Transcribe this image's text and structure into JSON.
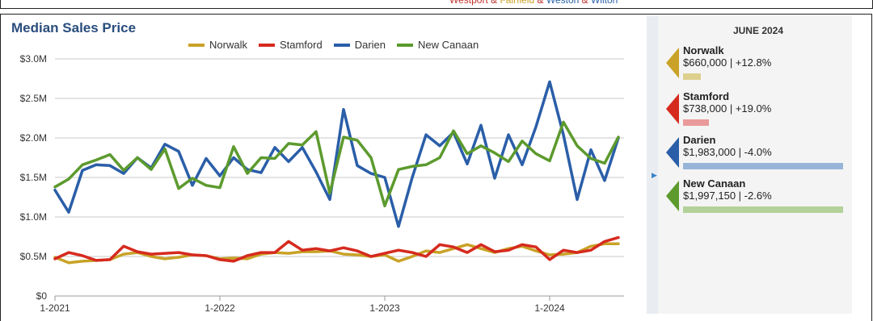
{
  "header": {
    "subtitle_parts": [
      {
        "text": "Westport",
        "color": "#c2302b"
      },
      {
        "text": " & ",
        "color": "#c2302b"
      },
      {
        "text": "Fairfield",
        "color": "#c9a227"
      },
      {
        "text": " & ",
        "color": "#c2302b"
      },
      {
        "text": "Weston",
        "color": "#2a62a8"
      },
      {
        "text": " & ",
        "color": "#c2302b"
      },
      {
        "text": "Wilton",
        "color": "#2a62a8"
      }
    ]
  },
  "chart_data": {
    "type": "line",
    "title": "Median Sales Price",
    "x_tick_labels": [
      "1-2021",
      "1-2022",
      "1-2023",
      "1-2024"
    ],
    "y_tick_labels": [
      "$0",
      "$0.5M",
      "$1.0M",
      "$1.5M",
      "$2.0M",
      "$2.5M",
      "$3.0M"
    ],
    "ylim": [
      0,
      3.0
    ],
    "y_unit": "$M",
    "grid": true,
    "legend_position": "top-center",
    "x": [
      "2021-01",
      "2021-02",
      "2021-03",
      "2021-04",
      "2021-05",
      "2021-06",
      "2021-07",
      "2021-08",
      "2021-09",
      "2021-10",
      "2021-11",
      "2021-12",
      "2022-01",
      "2022-02",
      "2022-03",
      "2022-04",
      "2022-05",
      "2022-06",
      "2022-07",
      "2022-08",
      "2022-09",
      "2022-10",
      "2022-11",
      "2022-12",
      "2023-01",
      "2023-02",
      "2023-03",
      "2023-04",
      "2023-05",
      "2023-06",
      "2023-07",
      "2023-08",
      "2023-09",
      "2023-10",
      "2023-11",
      "2023-12",
      "2024-01",
      "2024-02",
      "2024-03",
      "2024-04",
      "2024-05",
      "2024-06"
    ],
    "series": [
      {
        "name": "Norwalk",
        "color": "#c9a227",
        "values": [
          0.49,
          0.42,
          0.44,
          0.45,
          0.46,
          0.53,
          0.55,
          0.5,
          0.47,
          0.49,
          0.52,
          0.51,
          0.47,
          0.48,
          0.47,
          0.53,
          0.55,
          0.54,
          0.56,
          0.56,
          0.57,
          0.53,
          0.52,
          0.5,
          0.52,
          0.44,
          0.5,
          0.57,
          0.55,
          0.6,
          0.65,
          0.6,
          0.55,
          0.6,
          0.63,
          0.57,
          0.52,
          0.53,
          0.55,
          0.63,
          0.66,
          0.66
        ]
      },
      {
        "name": "Stamford",
        "color": "#d62a1e",
        "values": [
          0.47,
          0.55,
          0.51,
          0.45,
          0.46,
          0.63,
          0.56,
          0.53,
          0.54,
          0.55,
          0.52,
          0.51,
          0.46,
          0.44,
          0.51,
          0.55,
          0.55,
          0.69,
          0.58,
          0.6,
          0.57,
          0.61,
          0.57,
          0.5,
          0.54,
          0.58,
          0.55,
          0.5,
          0.65,
          0.62,
          0.55,
          0.65,
          0.56,
          0.58,
          0.65,
          0.62,
          0.46,
          0.58,
          0.55,
          0.58,
          0.69,
          0.74
        ]
      },
      {
        "name": "Darien",
        "color": "#2a5ea8",
        "values": [
          1.34,
          1.06,
          1.59,
          1.66,
          1.65,
          1.55,
          1.75,
          1.62,
          1.92,
          1.83,
          1.4,
          1.74,
          1.52,
          1.75,
          1.6,
          1.56,
          1.88,
          1.7,
          1.88,
          1.57,
          1.22,
          2.36,
          1.65,
          1.55,
          1.5,
          0.88,
          1.5,
          2.04,
          1.9,
          2.07,
          1.67,
          2.16,
          1.49,
          2.04,
          1.66,
          2.14,
          2.71,
          2.04,
          1.22,
          1.85,
          1.46,
          2.0
        ]
      },
      {
        "name": "New Canaan",
        "color": "#5c9a2e",
        "values": [
          1.38,
          1.48,
          1.66,
          1.72,
          1.79,
          1.59,
          1.75,
          1.6,
          1.86,
          1.36,
          1.49,
          1.4,
          1.37,
          1.89,
          1.55,
          1.75,
          1.74,
          1.93,
          1.91,
          2.08,
          1.3,
          2.01,
          1.97,
          1.75,
          1.14,
          1.6,
          1.64,
          1.66,
          1.75,
          2.09,
          1.8,
          1.9,
          1.81,
          1.7,
          1.96,
          1.8,
          1.71,
          2.2,
          1.9,
          1.74,
          1.68,
          2.01
        ]
      }
    ]
  },
  "panel": {
    "date_label": "JUNE 2024",
    "cards": [
      {
        "name": "Norwalk",
        "value": "$660,000 | +12.8%",
        "color": "#c9a227",
        "bar_color": "#ddd08e",
        "bar_fraction": 0.11
      },
      {
        "name": "Stamford",
        "value": "$738,000 | +19.0%",
        "color": "#d62a1e",
        "bar_color": "#ea9a9a",
        "bar_fraction": 0.16
      },
      {
        "name": "Darien",
        "value": "$1,983,000 | -4.0%",
        "color": "#2a5ea8",
        "bar_color": "#97b5d9",
        "bar_fraction": 1.0
      },
      {
        "name": "New Canaan",
        "value": "$1,997,150 | -2.6%",
        "color": "#5c9a2e",
        "bar_color": "#b3d199",
        "bar_fraction": 1.0
      }
    ]
  },
  "expand_icon": "chevron-right-icon"
}
